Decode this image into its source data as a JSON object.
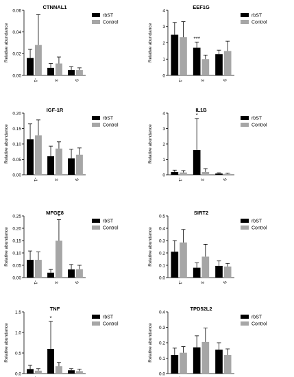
{
  "colors": {
    "rbST": "#000000",
    "Control": "#a6a6a6",
    "axis": "#000000"
  },
  "chart_data": [
    {
      "type": "bar",
      "title": "CTNNAL1",
      "ylabel": "Relative abundance",
      "categories": [
        "-1",
        "3",
        "9"
      ],
      "ylim": [
        0,
        0.06
      ],
      "yticks": [
        "0.00",
        "0.02",
        "0.04",
        "0.06"
      ],
      "ytick_values": [
        0,
        0.02,
        0.04,
        0.06
      ],
      "legend": "top-right",
      "series": [
        {
          "name": "rbST",
          "values": [
            0.016,
            0.007,
            0.005
          ],
          "errors": [
            0.008,
            0.004,
            0.003
          ]
        },
        {
          "name": "Control",
          "values": [
            0.028,
            0.011,
            0.005
          ],
          "errors": [
            0.028,
            0.006,
            0.002
          ]
        }
      ],
      "annotations": []
    },
    {
      "type": "bar",
      "title": "EEF1G",
      "ylabel": "Relative abundance",
      "categories": [
        "-1",
        "3",
        "9"
      ],
      "ylim": [
        0,
        4
      ],
      "yticks": [
        "0",
        "1",
        "2",
        "3",
        "4"
      ],
      "ytick_values": [
        0,
        1,
        2,
        3,
        4
      ],
      "legend": "top-right",
      "series": [
        {
          "name": "rbST",
          "values": [
            2.5,
            1.7,
            1.3
          ],
          "errors": [
            0.75,
            0.35,
            0.25
          ]
        },
        {
          "name": "Control",
          "values": [
            2.35,
            1.0,
            1.5
          ],
          "errors": [
            0.95,
            0.25,
            0.6
          ]
        }
      ],
      "annotations": [
        {
          "text": "***",
          "category": 1,
          "series": 0
        }
      ]
    },
    {
      "type": "bar",
      "title": "IGF-1R",
      "ylabel": "Relative abundance",
      "categories": [
        "-1",
        "3",
        "9"
      ],
      "ylim": [
        0,
        0.2
      ],
      "yticks": [
        "0.00",
        "0.05",
        "0.10",
        "0.15",
        "0.20"
      ],
      "ytick_values": [
        0,
        0.05,
        0.1,
        0.15,
        0.2
      ],
      "legend": "top-right",
      "series": [
        {
          "name": "rbST",
          "values": [
            0.115,
            0.06,
            0.053
          ],
          "errors": [
            0.05,
            0.033,
            0.03
          ]
        },
        {
          "name": "Control",
          "values": [
            0.128,
            0.085,
            0.065
          ],
          "errors": [
            0.05,
            0.022,
            0.022
          ]
        }
      ],
      "annotations": []
    },
    {
      "type": "bar",
      "title": "IL1B",
      "ylabel": "Relative abundance",
      "categories": [
        "-1",
        "3",
        "9"
      ],
      "ylim": [
        0,
        4
      ],
      "yticks": [
        "0",
        "1",
        "2",
        "3",
        "4"
      ],
      "ytick_values": [
        0,
        1,
        2,
        3,
        4
      ],
      "legend": "top-right",
      "series": [
        {
          "name": "rbST",
          "values": [
            0.18,
            1.6,
            0.08
          ],
          "errors": [
            0.12,
            2.05,
            0.05
          ]
        },
        {
          "name": "Control",
          "values": [
            0.15,
            0.18,
            0.06
          ],
          "errors": [
            0.12,
            0.22,
            0.05
          ]
        }
      ],
      "annotations": [
        {
          "text": "*",
          "category": 1,
          "series": 0
        }
      ]
    },
    {
      "type": "bar",
      "title": "MFGE8",
      "ylabel": "Relative abundance",
      "categories": [
        "-1",
        "3",
        "9"
      ],
      "ylim": [
        0,
        0.25
      ],
      "yticks": [
        "0.00",
        "0.05",
        "0.10",
        "0.15",
        "0.20",
        "0.25"
      ],
      "ytick_values": [
        0,
        0.05,
        0.1,
        0.15,
        0.2,
        0.25
      ],
      "legend": "top-right",
      "series": [
        {
          "name": "rbST",
          "values": [
            0.072,
            0.02,
            0.033
          ],
          "errors": [
            0.036,
            0.013,
            0.02
          ]
        },
        {
          "name": "Control",
          "values": [
            0.072,
            0.15,
            0.034
          ],
          "errors": [
            0.032,
            0.085,
            0.016
          ]
        }
      ],
      "annotations": [
        {
          "text": "*",
          "category": 1,
          "series": 1
        }
      ]
    },
    {
      "type": "bar",
      "title": "SIRT2",
      "ylabel": "Relative abundance",
      "categories": [
        "-1",
        "3",
        "9"
      ],
      "ylim": [
        0,
        0.5
      ],
      "yticks": [
        "0.0",
        "0.1",
        "0.2",
        "0.3",
        "0.4",
        "0.5"
      ],
      "ytick_values": [
        0,
        0.1,
        0.2,
        0.3,
        0.4,
        0.5
      ],
      "legend": "top-right",
      "series": [
        {
          "name": "rbST",
          "values": [
            0.21,
            0.08,
            0.095
          ],
          "errors": [
            0.09,
            0.04,
            0.04
          ]
        },
        {
          "name": "Control",
          "values": [
            0.285,
            0.17,
            0.09
          ],
          "errors": [
            0.105,
            0.1,
            0.025
          ]
        }
      ],
      "annotations": []
    },
    {
      "type": "bar",
      "title": "TNF",
      "ylabel": "Relative abundance",
      "categories": [
        "-1",
        "3",
        "9"
      ],
      "ylim": [
        0,
        1.5
      ],
      "yticks": [
        "0.0",
        "0.5",
        "1.0",
        "1.5"
      ],
      "ytick_values": [
        0,
        0.5,
        1.0,
        1.5
      ],
      "legend": "top-right",
      "series": [
        {
          "name": "rbST",
          "values": [
            0.11,
            0.6,
            0.08
          ],
          "errors": [
            0.09,
            0.67,
            0.04
          ]
        },
        {
          "name": "Control",
          "values": [
            0.07,
            0.18,
            0.06
          ],
          "errors": [
            0.05,
            0.09,
            0.05
          ]
        }
      ],
      "annotations": [
        {
          "text": "*",
          "category": 1,
          "series": 0
        }
      ]
    },
    {
      "type": "bar",
      "title": "TPD52L2",
      "ylabel": "Relative abundance",
      "categories": [
        "-1",
        "3",
        "9"
      ],
      "ylim": [
        0,
        0.4
      ],
      "yticks": [
        "0.0",
        "0.1",
        "0.2",
        "0.3",
        "0.4"
      ],
      "ytick_values": [
        0,
        0.1,
        0.2,
        0.3,
        0.4
      ],
      "legend": "top-right",
      "series": [
        {
          "name": "rbST",
          "values": [
            0.12,
            0.17,
            0.155
          ],
          "errors": [
            0.045,
            0.075,
            0.045
          ]
        },
        {
          "name": "Control",
          "values": [
            0.135,
            0.205,
            0.12
          ],
          "errors": [
            0.04,
            0.09,
            0.04
          ]
        }
      ],
      "annotations": []
    }
  ]
}
